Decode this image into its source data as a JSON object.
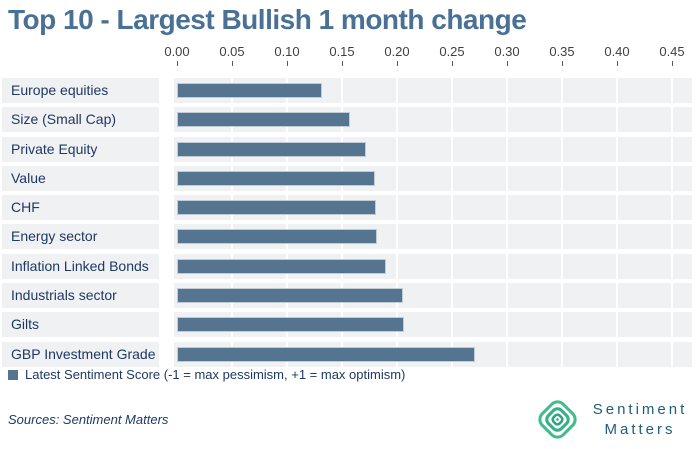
{
  "chart_data": {
    "type": "bar",
    "orientation": "horizontal",
    "title": "Top 10 - Largest Bullish 1 month change",
    "categories": [
      "Europe equities",
      "Size (Small Cap)",
      "Private Equity",
      "Value",
      "CHF",
      "Energy sector",
      "Inflation Linked Bonds",
      "Industrials sector",
      "Gilts",
      "GBP Investment Grade"
    ],
    "values": [
      0.132,
      0.157,
      0.172,
      0.18,
      0.181,
      0.182,
      0.19,
      0.205,
      0.206,
      0.271
    ],
    "xlabel": "",
    "ylabel": "",
    "xlim": [
      0,
      0.45
    ],
    "tick_step": 0.05,
    "axis_position": "top",
    "x_tick_labels": [
      "0.00",
      "0.05",
      "0.10",
      "0.15",
      "0.20",
      "0.25",
      "0.30",
      "0.35",
      "0.40",
      "0.45"
    ],
    "grid": "vertical white gridlines on shaded row bands",
    "legend": {
      "label": "Latest Sentiment Score (-1 = max pessimism, +1 = max optimism)",
      "position": "bottom-left",
      "marker_color": "#54748f"
    }
  },
  "colors": {
    "bar_fill": "#54748f",
    "bar_border": "#c2ccd7",
    "row_band": "#f0f1f2",
    "title_text": "#4a7195",
    "label_text": "#1f3864",
    "tick_text": "#3f3f3f",
    "logo_green_outer": "#3fbd8d",
    "logo_green_mid": "#34b187",
    "logo_green_inner": "#2aa67f",
    "logo_text": "#215e79"
  },
  "footer": {
    "sources": "Sources: Sentiment Matters",
    "brand_line1": "Sentiment",
    "brand_line2": "Matters"
  }
}
